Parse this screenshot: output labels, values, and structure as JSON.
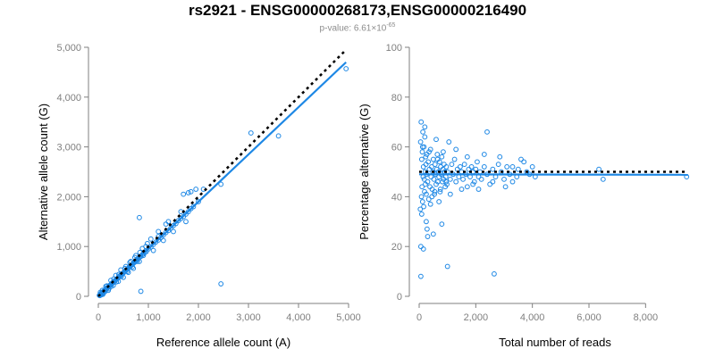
{
  "header": {
    "title": "rs2921 - ENSG00000268173,ENSG00000216490",
    "pvalue_prefix": "p-value: 6.61×10",
    "pvalue_exp": "-65"
  },
  "colors": {
    "points": "#1E88E5",
    "fit": "#1E88E5",
    "reference": "#000000",
    "axis": "#7f7f7f"
  },
  "chart_data": [
    {
      "type": "scatter",
      "xlabel": "Reference allele count (A)",
      "ylabel": "Alternative allele count (G)",
      "xlim": [
        0,
        5000
      ],
      "ylim": [
        0,
        5000
      ],
      "xticks": [
        0,
        1000,
        2000,
        3000,
        4000,
        5000
      ],
      "xtick_labels": [
        "0",
        "1,000",
        "2,000",
        "3,000",
        "4,000",
        "5,000"
      ],
      "yticks": [
        0,
        1000,
        2000,
        3000,
        4000,
        5000
      ],
      "ytick_labels": [
        "0",
        "1,000",
        "2,000",
        "3,000",
        "4,000",
        "5,000"
      ],
      "reference_line": {
        "style": "dotted",
        "points": [
          [
            0,
            0
          ],
          [
            4950,
            4950
          ]
        ]
      },
      "fit_line": {
        "style": "solid",
        "points": [
          [
            0,
            0
          ],
          [
            4950,
            4700
          ]
        ]
      },
      "points": [
        [
          20,
          20
        ],
        [
          30,
          15
        ],
        [
          40,
          45
        ],
        [
          50,
          40
        ],
        [
          60,
          65
        ],
        [
          70,
          60
        ],
        [
          80,
          70
        ],
        [
          90,
          85
        ],
        [
          100,
          95
        ],
        [
          110,
          100
        ],
        [
          120,
          115
        ],
        [
          130,
          120
        ],
        [
          140,
          135
        ],
        [
          150,
          130
        ],
        [
          160,
          150
        ],
        [
          170,
          165
        ],
        [
          180,
          170
        ],
        [
          190,
          175
        ],
        [
          200,
          190
        ],
        [
          210,
          200
        ],
        [
          220,
          205
        ],
        [
          230,
          220
        ],
        [
          240,
          225
        ],
        [
          250,
          235
        ],
        [
          260,
          245
        ],
        [
          270,
          255
        ],
        [
          280,
          270
        ],
        [
          290,
          275
        ],
        [
          300,
          280
        ],
        [
          320,
          300
        ],
        [
          340,
          320
        ],
        [
          360,
          340
        ],
        [
          380,
          355
        ],
        [
          400,
          380
        ],
        [
          420,
          390
        ],
        [
          440,
          420
        ],
        [
          460,
          430
        ],
        [
          480,
          455
        ],
        [
          500,
          470
        ],
        [
          520,
          495
        ],
        [
          540,
          505
        ],
        [
          560,
          530
        ],
        [
          580,
          545
        ],
        [
          600,
          565
        ],
        [
          620,
          590
        ],
        [
          640,
          600
        ],
        [
          660,
          625
        ],
        [
          680,
          640
        ],
        [
          700,
          665
        ],
        [
          720,
          680
        ],
        [
          740,
          700
        ],
        [
          760,
          720
        ],
        [
          780,
          735
        ],
        [
          800,
          760
        ],
        [
          820,
          780
        ],
        [
          850,
          800
        ],
        [
          880,
          840
        ],
        [
          900,
          850
        ],
        [
          930,
          880
        ],
        [
          960,
          900
        ],
        [
          1000,
          950
        ],
        [
          1050,
          990
        ],
        [
          1100,
          1040
        ],
        [
          1150,
          1090
        ],
        [
          1200,
          1130
        ],
        [
          1250,
          1180
        ],
        [
          1300,
          1230
        ],
        [
          1350,
          1280
        ],
        [
          1400,
          1320
        ],
        [
          1450,
          1370
        ],
        [
          1500,
          1420
        ],
        [
          1550,
          1460
        ],
        [
          1600,
          1520
        ],
        [
          1650,
          1560
        ],
        [
          1700,
          1600
        ],
        [
          1750,
          1650
        ],
        [
          1800,
          1700
        ],
        [
          1850,
          1760
        ],
        [
          1900,
          1800
        ],
        [
          2000,
          1900
        ],
        [
          80,
          120
        ],
        [
          100,
          60
        ],
        [
          150,
          200
        ],
        [
          200,
          120
        ],
        [
          250,
          320
        ],
        [
          300,
          220
        ],
        [
          350,
          420
        ],
        [
          400,
          300
        ],
        [
          450,
          530
        ],
        [
          500,
          380
        ],
        [
          550,
          600
        ],
        [
          600,
          480
        ],
        [
          650,
          700
        ],
        [
          700,
          560
        ],
        [
          750,
          820
        ],
        [
          820,
          700
        ],
        [
          880,
          960
        ],
        [
          950,
          1000
        ],
        [
          1050,
          1150
        ],
        [
          1100,
          920
        ],
        [
          1200,
          1300
        ],
        [
          1300,
          1120
        ],
        [
          1400,
          1500
        ],
        [
          1500,
          1300
        ],
        [
          1650,
          1700
        ],
        [
          1750,
          1500
        ],
        [
          1850,
          2100
        ],
        [
          1950,
          2150
        ],
        [
          1700,
          2050
        ],
        [
          1800,
          2080
        ],
        [
          2100,
          2150
        ],
        [
          2450,
          2250
        ],
        [
          3050,
          3280
        ],
        [
          3600,
          3220
        ],
        [
          4950,
          4570
        ],
        [
          820,
          1580
        ],
        [
          850,
          100
        ],
        [
          2450,
          250
        ],
        [
          1200,
          1200
        ],
        [
          1350,
          1450
        ],
        [
          60,
          30
        ],
        [
          40,
          80
        ],
        [
          90,
          40
        ],
        [
          130,
          90
        ],
        [
          170,
          210
        ],
        [
          210,
          150
        ],
        [
          260,
          200
        ],
        [
          310,
          350
        ],
        [
          360,
          290
        ],
        [
          410,
          440
        ],
        [
          460,
          400
        ],
        [
          530,
          560
        ],
        [
          580,
          500
        ],
        [
          630,
          680
        ],
        [
          680,
          590
        ],
        [
          730,
          780
        ],
        [
          780,
          700
        ],
        [
          830,
          880
        ],
        [
          900,
          820
        ],
        [
          980,
          1060
        ]
      ]
    },
    {
      "type": "scatter",
      "xlabel": "Total number of reads",
      "ylabel": "Percentage alternative (G)",
      "xlim": [
        0,
        9600
      ],
      "ylim": [
        0,
        100
      ],
      "xticks": [
        0,
        2000,
        4000,
        6000,
        8000
      ],
      "xtick_labels": [
        "0",
        "2,000",
        "4,000",
        "6,000",
        "8,000"
      ],
      "yticks": [
        0,
        20,
        40,
        60,
        80,
        100
      ],
      "ytick_labels": [
        "0",
        "20",
        "40",
        "60",
        "80",
        "100"
      ],
      "reference_line": {
        "style": "dotted",
        "points": [
          [
            0,
            50
          ],
          [
            9500,
            50
          ]
        ]
      },
      "fit_line": {
        "style": "solid",
        "points": [
          [
            0,
            49
          ],
          [
            9500,
            48.8
          ]
        ]
      },
      "points": [
        [
          40,
          35
        ],
        [
          50,
          62
        ],
        [
          60,
          20
        ],
        [
          70,
          70
        ],
        [
          80,
          40
        ],
        [
          90,
          55
        ],
        [
          100,
          44
        ],
        [
          110,
          58
        ],
        [
          120,
          38
        ],
        [
          130,
          66
        ],
        [
          140,
          48
        ],
        [
          150,
          52
        ],
        [
          160,
          36
        ],
        [
          170,
          60
        ],
        [
          180,
          47
        ],
        [
          190,
          42
        ],
        [
          200,
          64
        ],
        [
          210,
          50
        ],
        [
          220,
          45
        ],
        [
          230,
          56
        ],
        [
          240,
          53
        ],
        [
          250,
          41
        ],
        [
          260,
          49
        ],
        [
          270,
          57
        ],
        [
          280,
          27
        ],
        [
          300,
          46
        ],
        [
          320,
          54
        ],
        [
          340,
          39
        ],
        [
          360,
          51
        ],
        [
          380,
          44
        ],
        [
          400,
          59
        ],
        [
          420,
          48
        ],
        [
          440,
          52
        ],
        [
          460,
          43
        ],
        [
          480,
          50
        ],
        [
          500,
          55
        ],
        [
          520,
          47
        ],
        [
          540,
          41
        ],
        [
          560,
          53
        ],
        [
          580,
          49
        ],
        [
          600,
          45
        ],
        [
          620,
          51
        ],
        [
          640,
          57
        ],
        [
          660,
          46
        ],
        [
          680,
          50
        ],
        [
          700,
          48
        ],
        [
          720,
          54
        ],
        [
          740,
          42
        ],
        [
          760,
          52
        ],
        [
          780,
          49
        ],
        [
          800,
          56
        ],
        [
          820,
          46
        ],
        [
          840,
          51
        ],
        [
          860,
          47
        ],
        [
          880,
          53
        ],
        [
          900,
          50
        ],
        [
          920,
          44
        ],
        [
          940,
          48
        ],
        [
          960,
          52
        ],
        [
          980,
          45
        ],
        [
          1000,
          50
        ],
        [
          1050,
          62
        ],
        [
          1100,
          47
        ],
        [
          1150,
          53
        ],
        [
          1200,
          49
        ],
        [
          1250,
          55
        ],
        [
          1300,
          46
        ],
        [
          1350,
          51
        ],
        [
          1400,
          48
        ],
        [
          1450,
          52
        ],
        [
          1500,
          50
        ],
        [
          1550,
          47
        ],
        [
          1600,
          53
        ],
        [
          1650,
          49
        ],
        [
          1700,
          44
        ],
        [
          1750,
          51
        ],
        [
          1800,
          48
        ],
        [
          1850,
          52
        ],
        [
          1900,
          50
        ],
        [
          1950,
          46
        ],
        [
          2000,
          51
        ],
        [
          2050,
          54
        ],
        [
          2100,
          48
        ],
        [
          2150,
          50
        ],
        [
          2200,
          47
        ],
        [
          2300,
          52
        ],
        [
          2400,
          49
        ],
        [
          2500,
          45
        ],
        [
          2600,
          51
        ],
        [
          2700,
          48
        ],
        [
          2800,
          53
        ],
        [
          2900,
          50
        ],
        [
          3000,
          47
        ],
        [
          3100,
          52
        ],
        [
          3200,
          49
        ],
        [
          3300,
          46
        ],
        [
          3500,
          51
        ],
        [
          3700,
          54
        ],
        [
          3900,
          49
        ],
        [
          4100,
          48
        ],
        [
          60,
          8
        ],
        [
          300,
          24
        ],
        [
          800,
          29
        ],
        [
          1000,
          12
        ],
        [
          2650,
          9
        ],
        [
          2400,
          66
        ],
        [
          3600,
          55
        ],
        [
          4000,
          52
        ],
        [
          6350,
          51
        ],
        [
          6500,
          47
        ],
        [
          9450,
          48
        ],
        [
          500,
          25
        ],
        [
          150,
          19
        ],
        [
          200,
          68
        ],
        [
          250,
          30
        ],
        [
          120,
          60
        ],
        [
          90,
          33
        ],
        [
          700,
          38
        ],
        [
          400,
          37
        ],
        [
          600,
          63
        ],
        [
          350,
          58
        ],
        [
          450,
          40
        ],
        [
          550,
          42
        ],
        [
          650,
          55
        ],
        [
          750,
          43
        ],
        [
          850,
          58
        ],
        [
          950,
          46
        ],
        [
          1100,
          41
        ],
        [
          1300,
          59
        ],
        [
          1500,
          43
        ],
        [
          1700,
          56
        ],
        [
          1900,
          45
        ],
        [
          2100,
          43
        ],
        [
          2300,
          57
        ],
        [
          2600,
          46
        ],
        [
          2850,
          56
        ],
        [
          3050,
          44
        ],
        [
          3300,
          52
        ],
        [
          3450,
          48
        ],
        [
          3800,
          50
        ]
      ]
    }
  ]
}
